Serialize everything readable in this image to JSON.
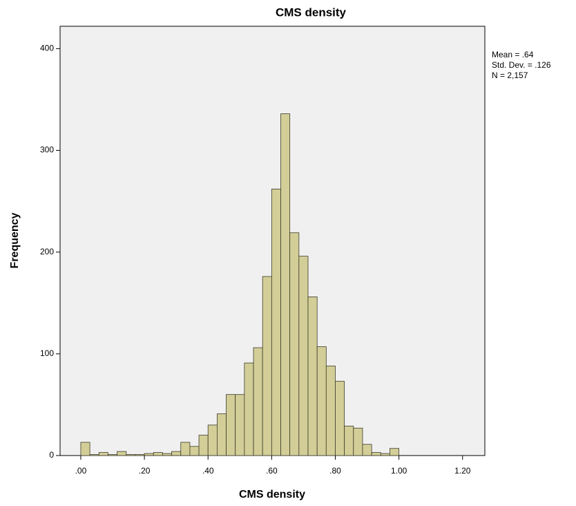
{
  "chart_data": {
    "type": "histogram",
    "title": "CMS density",
    "x_label": "CMS density",
    "y_label": "Frequency",
    "annotations": [
      "Mean = .64",
      "Std. Dev. = .126",
      "N = 2,157"
    ],
    "bins": [
      0,
      0.0286,
      0.0571,
      0.0857,
      0.1143,
      0.1429,
      0.1714,
      0.2,
      0.2286,
      0.2571,
      0.2857,
      0.3143,
      0.3429,
      0.3714,
      0.4,
      0.4286,
      0.4571,
      0.4857,
      0.5143,
      0.5429,
      0.5714,
      0.6,
      0.6286,
      0.6571,
      0.6857,
      0.7143,
      0.7429,
      0.7714,
      0.8,
      0.8286,
      0.8571,
      0.8857,
      0.9143,
      0.9429,
      0.9714,
      1.0
    ],
    "values": [
      13,
      1,
      3,
      1,
      4,
      1,
      1,
      2,
      3,
      2,
      4,
      13,
      9,
      20,
      30,
      41,
      60,
      60,
      91,
      106,
      176,
      262,
      336,
      219,
      196,
      156,
      107,
      88,
      73,
      29,
      27,
      11,
      3,
      2,
      7
    ],
    "color": "#d3ce97",
    "xlim": [
      -0.065,
      1.27
    ],
    "xticks": [
      {
        "value": 0,
        "label": ".00"
      },
      {
        "value": 0.2,
        "label": ".20"
      },
      {
        "value": 0.4,
        "label": ".40"
      },
      {
        "value": 0.6,
        "label": ".60"
      },
      {
        "value": 0.8,
        "label": ".80"
      },
      {
        "value": 1.0,
        "label": "1.00"
      },
      {
        "value": 1.2,
        "label": "1.20"
      }
    ],
    "ylim": [
      0,
      422
    ],
    "yticks": [
      0,
      100,
      200,
      300,
      400
    ],
    "grid": false
  }
}
